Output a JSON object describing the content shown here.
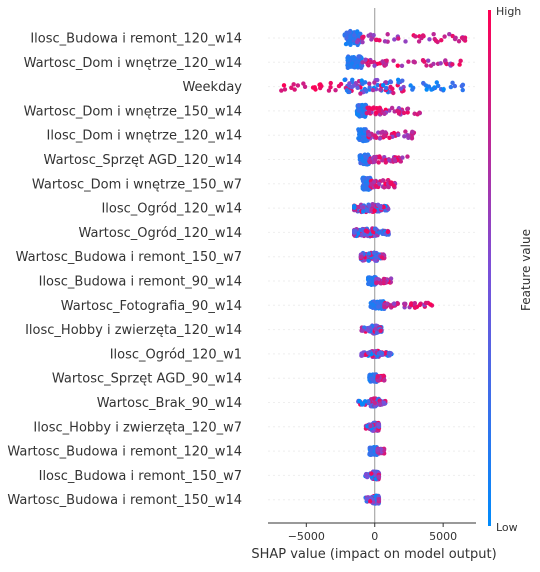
{
  "chart_data": {
    "type": "scatter",
    "subtype": "shap-beeswarm",
    "title": "",
    "xlabel": "SHAP value (impact on model output)",
    "ylabel": "",
    "xlim": [
      -7800,
      7400
    ],
    "xticks": [
      -5000,
      0,
      5000
    ],
    "xtick_labels": [
      "−5000",
      "0",
      "5000"
    ],
    "grid": false,
    "zero_line": true,
    "colorbar": {
      "label": "Feature value",
      "high_label": "High",
      "low_label": "Low",
      "low_color": "#008bfb",
      "mid_color": "#7b4fd8",
      "high_color": "#ff0052"
    },
    "features": [
      {
        "name": "Ilosc_Budowa i remont_120_w14",
        "cluster_lo": -2200,
        "cluster_hi": -1000,
        "tail_lo": -1300,
        "tail_hi": 6700,
        "tail_dir": "right",
        "spread": 7
      },
      {
        "name": "Wartosc_Dom i wnętrze_120_w14",
        "cluster_lo": -2000,
        "cluster_hi": -900,
        "tail_lo": -900,
        "tail_hi": 6300,
        "tail_dir": "right",
        "spread": 6
      },
      {
        "name": "Weekday",
        "cluster_lo": -2200,
        "cluster_hi": 2400,
        "tail_lo": -7000,
        "tail_hi": 6600,
        "tail_dir": "both",
        "spread": 7
      },
      {
        "name": "Wartosc_Dom i wnętrze_150_w14",
        "cluster_lo": -1300,
        "cluster_hi": -600,
        "tail_lo": -600,
        "tail_hi": 3300,
        "tail_dir": "right",
        "spread": 6
      },
      {
        "name": "Ilosc_Dom i wnętrze_120_w14",
        "cluster_lo": -1200,
        "cluster_hi": -500,
        "tail_lo": -500,
        "tail_hi": 3000,
        "tail_dir": "right",
        "spread": 6
      },
      {
        "name": "Wartosc_Sprzęt AGD_120_w14",
        "cluster_lo": -1100,
        "cluster_hi": -400,
        "tail_lo": -400,
        "tail_hi": 2400,
        "tail_dir": "right",
        "spread": 5
      },
      {
        "name": "Wartosc_Dom i wnętrze_150_w7",
        "cluster_lo": -900,
        "cluster_hi": -300,
        "tail_lo": -300,
        "tail_hi": 1500,
        "tail_dir": "right",
        "spread": 6
      },
      {
        "name": "Ilosc_Ogród_120_w14",
        "cluster_lo": -1500,
        "cluster_hi": 400,
        "tail_lo": -1500,
        "tail_hi": 1000,
        "tail_dir": "both",
        "spread": 4
      },
      {
        "name": "Wartosc_Ogród_120_w14",
        "cluster_lo": -1500,
        "cluster_hi": 300,
        "tail_lo": -1500,
        "tail_hi": 1100,
        "tail_dir": "both",
        "spread": 4
      },
      {
        "name": "Wartosc_Budowa i remont_150_w7",
        "cluster_lo": -1000,
        "cluster_hi": 300,
        "tail_lo": -1000,
        "tail_hi": 700,
        "tail_dir": "both",
        "spread": 4
      },
      {
        "name": "Ilosc_Budowa i remont_90_w14",
        "cluster_lo": -500,
        "cluster_hi": 100,
        "tail_lo": 100,
        "tail_hi": 1200,
        "tail_dir": "right",
        "spread": 4
      },
      {
        "name": "Wartosc_Fotografia_90_w14",
        "cluster_lo": -300,
        "cluster_hi": 700,
        "tail_lo": 700,
        "tail_hi": 4300,
        "tail_dir": "right",
        "spread": 4
      },
      {
        "name": "Ilosc_Hobby i zwierzęta_120_w14",
        "cluster_lo": -200,
        "cluster_hi": 300,
        "tail_lo": -1000,
        "tail_hi": 500,
        "tail_dir": "both",
        "spread": 4
      },
      {
        "name": "Ilosc_Ogród_120_w1",
        "cluster_lo": -200,
        "cluster_hi": 300,
        "tail_lo": -1000,
        "tail_hi": 1400,
        "tail_dir": "both",
        "spread": 3
      },
      {
        "name": "Wartosc_Sprzęt AGD_90_w14",
        "cluster_lo": -400,
        "cluster_hi": 200,
        "tail_lo": 200,
        "tail_hi": 700,
        "tail_dir": "right",
        "spread": 4
      },
      {
        "name": "Wartosc_Brak_90_w14",
        "cluster_lo": -300,
        "cluster_hi": 300,
        "tail_lo": -1200,
        "tail_hi": 800,
        "tail_dir": "both",
        "spread": 4
      },
      {
        "name": "Ilosc_Hobby i zwierzęta_120_w7",
        "cluster_lo": -200,
        "cluster_hi": 300,
        "tail_lo": -700,
        "tail_hi": 300,
        "tail_dir": "both",
        "spread": 4
      },
      {
        "name": "Wartosc_Budowa i remont_120_w14",
        "cluster_lo": -400,
        "cluster_hi": 200,
        "tail_lo": 200,
        "tail_hi": 700,
        "tail_dir": "right",
        "spread": 4
      },
      {
        "name": "Ilosc_Budowa i remont_150_w7",
        "cluster_lo": -200,
        "cluster_hi": 300,
        "tail_lo": -700,
        "tail_hi": 300,
        "tail_dir": "both",
        "spread": 4
      },
      {
        "name": "Wartosc_Budowa i remont_150_w14",
        "cluster_lo": -200,
        "cluster_hi": 300,
        "tail_lo": -700,
        "tail_hi": 300,
        "tail_dir": "both",
        "spread": 4
      }
    ]
  }
}
